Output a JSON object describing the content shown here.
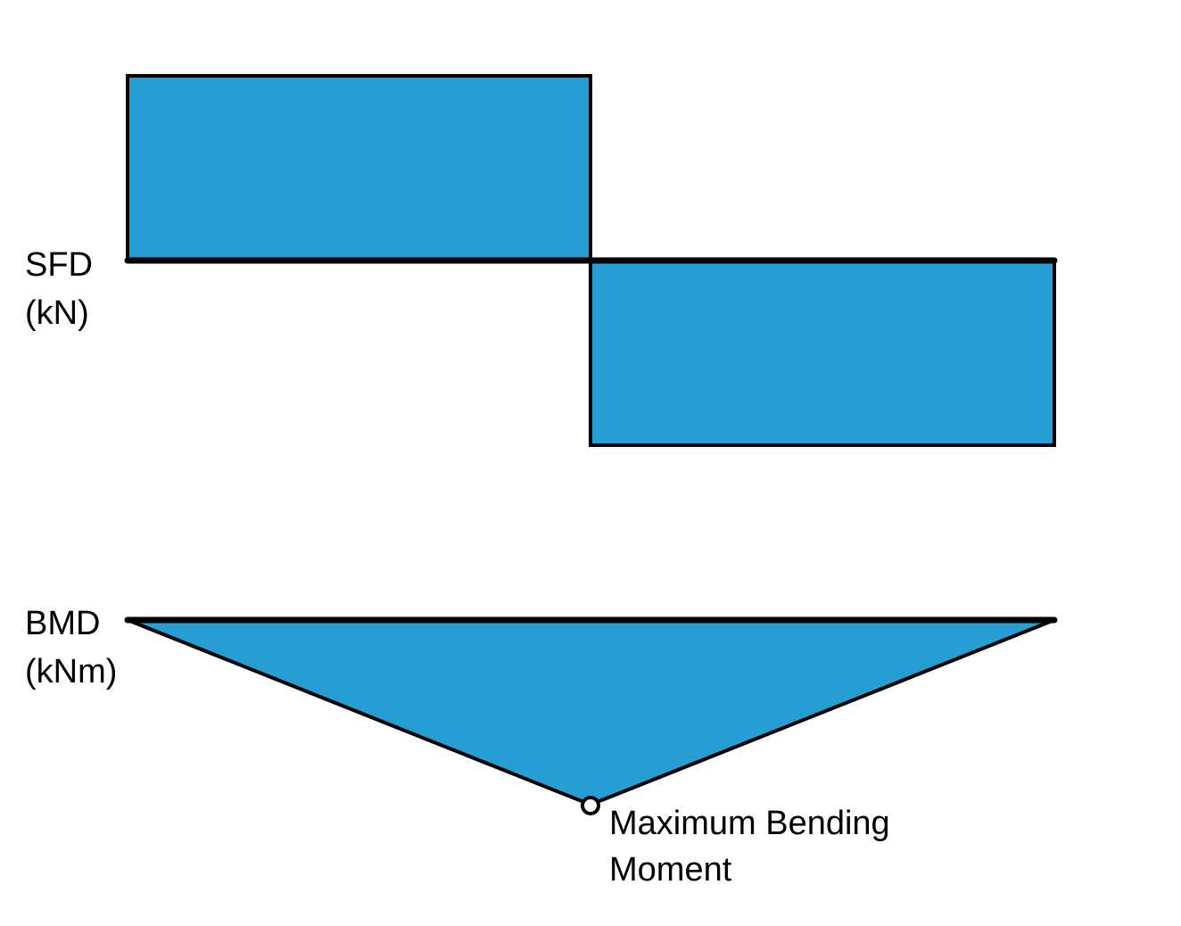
{
  "sfd": {
    "label_line1": "SFD",
    "label_line2": "(kN)"
  },
  "bmd": {
    "label_line1": "BMD",
    "label_line2": "(kNm)"
  },
  "annotation": {
    "line1": "Maximum Bending",
    "line2": "Moment"
  },
  "colors": {
    "fill": "#269dd3",
    "stroke": "#000000"
  }
}
